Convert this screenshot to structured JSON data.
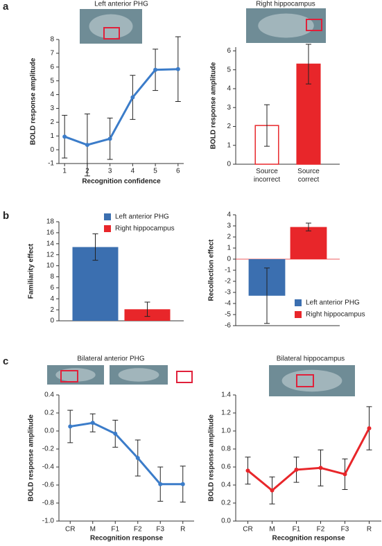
{
  "panel_labels": [
    "a",
    "b",
    "c"
  ],
  "chart_data": [
    {
      "type": "line",
      "title": "Left anterior PHG",
      "xlabel": "Recognition confidence",
      "ylabel": "BOLD response amplitude",
      "x": [
        1,
        2,
        3,
        4,
        5,
        6
      ],
      "values": [
        0.95,
        0.35,
        0.8,
        3.8,
        5.8,
        5.85
      ],
      "errors": [
        1.55,
        2.25,
        1.5,
        1.6,
        1.5,
        2.35
      ],
      "color": "#3b7cc9",
      "xlim": [
        0.75,
        6.25
      ],
      "xticks": [
        1,
        2,
        3,
        4,
        5,
        6
      ],
      "ylim": [
        -1,
        8
      ],
      "yticks": [
        -1,
        0,
        1,
        2,
        3,
        4,
        5,
        6,
        7,
        8
      ]
    },
    {
      "type": "bar",
      "title": "Right hippocampus",
      "ylabel": "BOLD response amplitude",
      "categories": [
        "Source incorrect",
        "Source correct"
      ],
      "values": [
        2.05,
        5.3
      ],
      "errors": [
        1.1,
        1.05
      ],
      "colors": [
        "#ffffff",
        "#e8262a"
      ],
      "edgecolor": "#e8262a",
      "ylim": [
        0,
        6.2
      ],
      "yticks": [
        0,
        1,
        2,
        3,
        4,
        5,
        6
      ]
    },
    {
      "type": "bar",
      "ylabel": "Familiarity effect",
      "legend": "upper right",
      "series": [
        {
          "name": "Left anterior PHG",
          "color": "#3b6fb0",
          "values": [
            13.4
          ],
          "errors": [
            2.4
          ]
        },
        {
          "name": "Right hippocampus",
          "color": "#e8262a",
          "values": [
            2.1
          ],
          "errors": [
            1.3
          ]
        }
      ],
      "ylim": [
        0,
        18
      ],
      "yticks": [
        0,
        2,
        4,
        6,
        8,
        10,
        12,
        14,
        16,
        18
      ]
    },
    {
      "type": "bar",
      "ylabel": "Recollection effect",
      "legend": "lower right",
      "series": [
        {
          "name": "Left anterior PHG",
          "color": "#3b6fb0",
          "values": [
            -3.3
          ],
          "errors": [
            2.5
          ]
        },
        {
          "name": "Right hippocampus",
          "color": "#e8262a",
          "values": [
            2.9
          ],
          "errors": [
            0.35
          ]
        }
      ],
      "ylim": [
        -6,
        4
      ],
      "yticks": [
        -6,
        -5,
        -4,
        -3,
        -2,
        -1,
        0,
        1,
        2,
        3,
        4
      ]
    },
    {
      "type": "line",
      "title": "Bilateral anterior PHG",
      "xlabel": "Recognition response",
      "ylabel": "BOLD response amplitude",
      "categories": [
        "CR",
        "M",
        "F1",
        "F2",
        "F3",
        "R"
      ],
      "values": [
        0.05,
        0.09,
        -0.03,
        -0.3,
        -0.59,
        -0.59
      ],
      "errors": [
        0.18,
        0.1,
        0.15,
        0.2,
        0.19,
        0.2
      ],
      "color": "#3b7cc9",
      "ylim": [
        -1,
        0.4
      ],
      "yticks": [
        {
          "value": -1,
          "label": "-1.0"
        },
        {
          "value": -0.8,
          "label": "-0.8"
        },
        {
          "value": -0.6,
          "label": "-0.6"
        },
        {
          "value": -0.4,
          "label": "-0.4"
        },
        {
          "value": -0.2,
          "label": "-0.2"
        },
        {
          "value": 0,
          "label": "0.0"
        },
        0.2,
        0.4
      ]
    },
    {
      "type": "line",
      "title": "Bilateral hippocampus",
      "xlabel": "Recognition response",
      "ylabel": "BOLD response amplitude",
      "categories": [
        "CR",
        "M",
        "F1",
        "F2",
        "F3",
        "R"
      ],
      "values": [
        0.56,
        0.34,
        0.57,
        0.59,
        0.52,
        1.03
      ],
      "errors": [
        0.15,
        0.15,
        0.14,
        0.2,
        0.17,
        0.24
      ],
      "color": "#e8262a",
      "ylim": [
        0,
        1.4
      ],
      "yticks": [
        {
          "value": 0,
          "label": "0.0"
        },
        0.2,
        0.4,
        0.6,
        0.8,
        {
          "value": 1,
          "label": "1.0"
        },
        1.2,
        1.4
      ]
    }
  ]
}
